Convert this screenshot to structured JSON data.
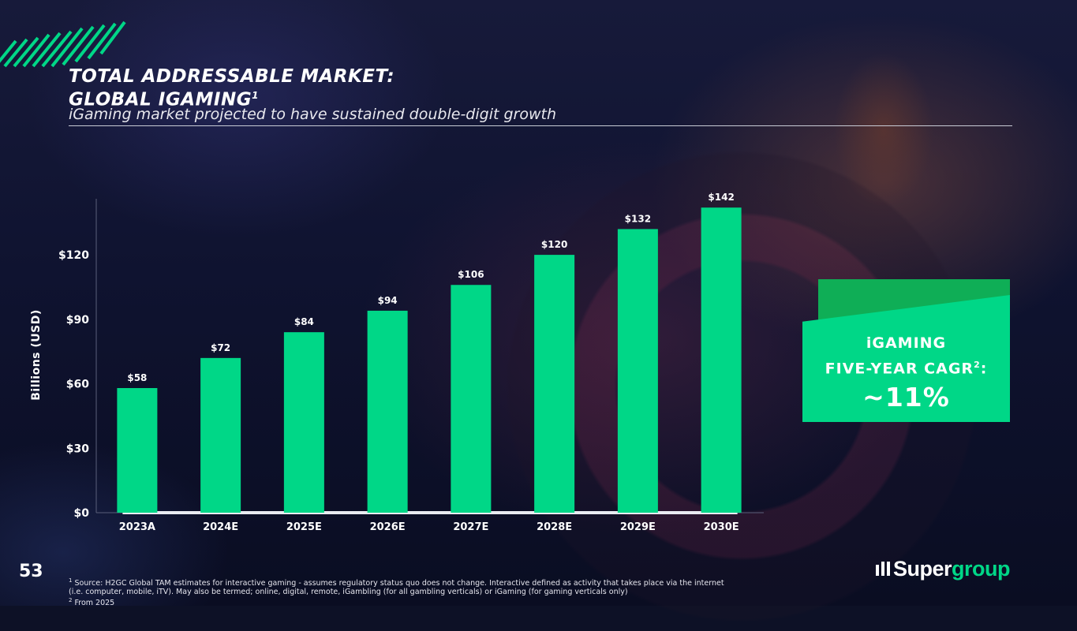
{
  "header": {
    "title_line1": "TOTAL ADDRESSABLE MARKET:",
    "title_line2": "GLOBAL IGAMING",
    "title_sup": "1",
    "subtitle": "iGaming market projected to have sustained double-digit growth"
  },
  "chart_data": {
    "type": "bar",
    "categories": [
      "2023A",
      "2024E",
      "2025E",
      "2026E",
      "2027E",
      "2028E",
      "2029E",
      "2030E"
    ],
    "values": [
      58,
      72,
      84,
      94,
      106,
      120,
      132,
      142
    ],
    "value_labels": [
      "$58",
      "$72",
      "$84",
      "$94",
      "$106",
      "$120",
      "$132",
      "$142"
    ],
    "ylabel": "Billions (USD)",
    "ylim": [
      0,
      145
    ],
    "yticks": [
      0,
      30,
      60,
      90,
      120
    ],
    "ytick_labels": [
      "$0",
      "$30",
      "$60",
      "$90",
      "$120"
    ],
    "grid": false,
    "bar_color": "#00d787"
  },
  "callout": {
    "line1": "iGAMING",
    "line2": "FIVE-YEAR CAGR",
    "line2_sup": "2",
    "line2_suffix": ":",
    "value": "~11%",
    "color": "#00d787"
  },
  "footer": {
    "page_number": "53",
    "note1_marker": "1",
    "note1_line1": " Source: H2GC Global TAM estimates for interactive gaming - assumes regulatory status quo does not change. Interactive defined as activity that takes place via the internet",
    "note1_line2": "(i.e. computer, mobile, iTV). May also be termed; online, digital, remote, iGambling (for all gambling verticals) or iGaming (for gaming verticals only)",
    "note2_marker": "2",
    "note2_text": " From 2025",
    "logo_part1": "Super",
    "logo_part2": "group"
  },
  "colors": {
    "accent": "#00d787",
    "accent_dark": "#0fae56",
    "background": "#0d1126"
  }
}
